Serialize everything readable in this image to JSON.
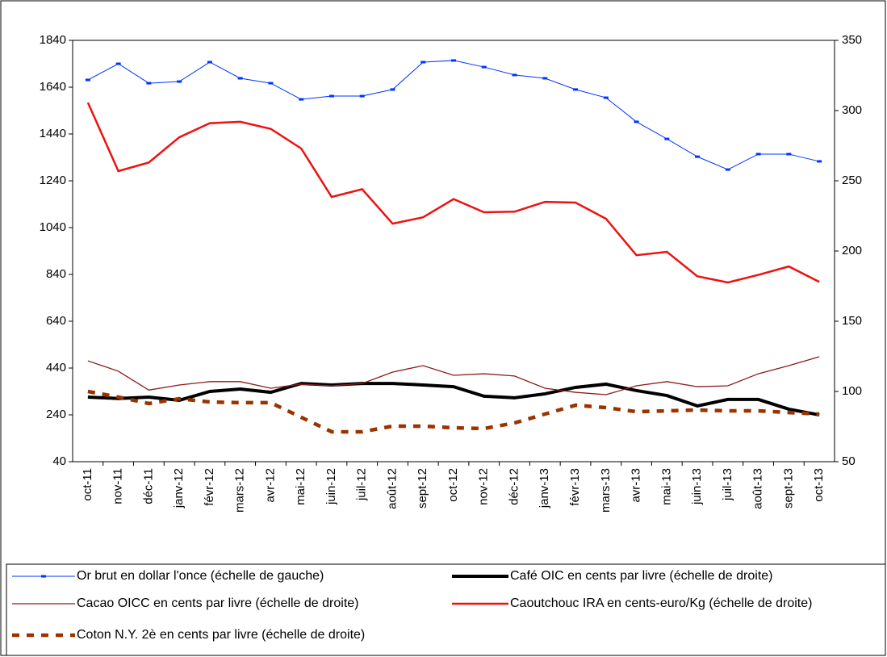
{
  "chart_data": {
    "type": "line",
    "categories": [
      "oct-11",
      "nov-11",
      "déc-11",
      "janv-12",
      "févr-12",
      "mars-12",
      "avr-12",
      "mai-12",
      "juin-12",
      "juil-12",
      "août-12",
      "sept-12",
      "oct-12",
      "nov-12",
      "déc-12",
      "janv-13",
      "févr-13",
      "mars-13",
      "avr-13",
      "mai-13",
      "juin-13",
      "juil-13",
      "août-13",
      "sept-13",
      "oct-13"
    ],
    "ylim": [
      40,
      1840
    ],
    "yticks": [
      40,
      240,
      440,
      640,
      840,
      1040,
      1240,
      1440,
      1640,
      1840
    ],
    "y2lim": [
      50,
      350
    ],
    "y2ticks": [
      50,
      100,
      150,
      200,
      250,
      300,
      350
    ],
    "legend": "bottom",
    "series": [
      {
        "name": "Or brut en dollar l'once (échelle de gauche)",
        "color": "#0033ff",
        "style": "marker",
        "values": [
          1671,
          1740,
          1657,
          1664,
          1747,
          1678,
          1657,
          1588,
          1602,
          1602,
          1630,
          1747,
          1754,
          1726,
          1692,
          1678,
          1630,
          1595,
          1492,
          1419,
          1343,
          1288,
          1354,
          1354,
          1323
        ]
      },
      {
        "name": "Café  OIC en cents par livre (échelle de droite)",
        "color": "#000000",
        "axis": "y2",
        "style": "thick",
        "values": [
          96,
          95,
          96,
          93.7,
          100,
          101.7,
          99.4,
          105.7,
          104.6,
          105.7,
          105.7,
          104.6,
          103.4,
          96.6,
          95.5,
          98.3,
          102.9,
          105.2,
          100.6,
          97.1,
          89.7,
          94.3,
          94.3,
          87.4,
          83.3
        ]
      },
      {
        "name": "Cacao OICC en cents par livre (échelle de droite)",
        "color": "#8b1a1a",
        "axis": "y2",
        "style": "thin",
        "values": [
          121.8,
          114.4,
          101,
          104.6,
          107,
          107,
          102.3,
          105.2,
          104,
          105.7,
          113.8,
          118.4,
          111.5,
          112.6,
          111,
          102.3,
          99.4,
          97.7,
          104,
          107,
          103.4,
          104,
          112.6,
          118.4,
          124.7
        ]
      },
      {
        "name": "Caoutchouc IRA en cents-euro/Kg (échelle de droite)",
        "color": "#ee1111",
        "axis": "y2",
        "style": "medium",
        "values": [
          305.7,
          256.9,
          263,
          281,
          291,
          292,
          287,
          273,
          238.5,
          244,
          219.5,
          224,
          237,
          227.6,
          228,
          235,
          234.5,
          223,
          197,
          199.4,
          182,
          177.6,
          183,
          189,
          178
        ]
      },
      {
        "name": "Coton N.Y. 2è en cents par livre (échelle de droite)",
        "color": "#993300",
        "axis": "y2",
        "style": "dashed",
        "values": [
          100,
          96,
          91.4,
          94.8,
          92.5,
          92,
          92,
          81.6,
          71.3,
          71.3,
          75.3,
          75.3,
          74.1,
          73.6,
          77.6,
          83.9,
          90.2,
          88.5,
          85.6,
          86.2,
          86.8,
          86.2,
          86.2,
          85,
          83.9
        ]
      }
    ]
  }
}
